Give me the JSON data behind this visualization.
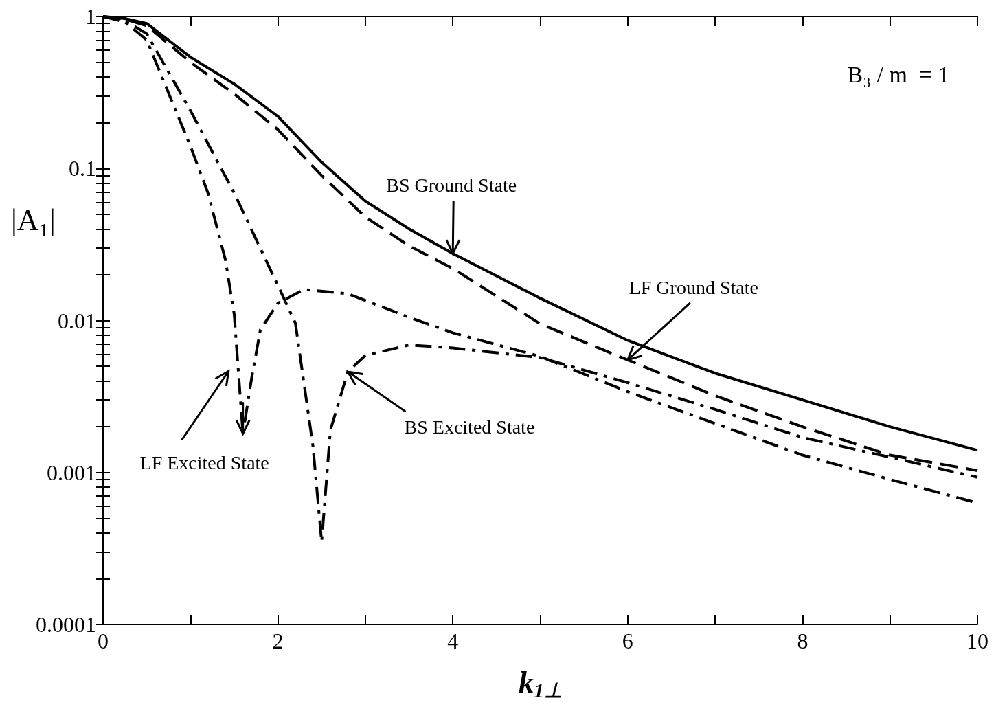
{
  "chart_data": {
    "type": "line",
    "xlabel": "k$_{1⊥}$",
    "ylabel": "|A₁|",
    "log": "y",
    "xlim": [
      0,
      10
    ],
    "xticks": [
      0,
      {
        "value": 1,
        "label": null
      },
      2,
      {
        "value": 3,
        "label": null
      },
      4,
      {
        "value": 5,
        "label": null
      },
      6,
      {
        "value": 7,
        "label": null
      },
      8,
      {
        "value": 9,
        "label": null
      },
      10
    ],
    "ylim": [
      0.0001,
      1
    ],
    "yticks": [
      0.0001,
      {
        "value": 0.0002,
        "label": null
      },
      {
        "value": 0.0003,
        "label": null
      },
      {
        "value": 0.0004,
        "label": null
      },
      {
        "value": 0.0005,
        "label": null
      },
      {
        "value": 0.0006,
        "label": null
      },
      {
        "value": 0.0007,
        "label": null
      },
      {
        "value": 0.0008,
        "label": null
      },
      {
        "value": 0.0009,
        "label": null
      },
      0.001,
      {
        "value": 0.002,
        "label": null
      },
      {
        "value": 0.003,
        "label": null
      },
      {
        "value": 0.004,
        "label": null
      },
      {
        "value": 0.005,
        "label": null
      },
      {
        "value": 0.006,
        "label": null
      },
      {
        "value": 0.007,
        "label": null
      },
      {
        "value": 0.008,
        "label": null
      },
      {
        "value": 0.009,
        "label": null
      },
      0.01,
      {
        "value": 0.02,
        "label": null
      },
      {
        "value": 0.03,
        "label": null
      },
      {
        "value": 0.04,
        "label": null
      },
      {
        "value": 0.05,
        "label": null
      },
      {
        "value": 0.06,
        "label": null
      },
      {
        "value": 0.07,
        "label": null
      },
      {
        "value": 0.08,
        "label": null
      },
      {
        "value": 0.09,
        "label": null
      },
      0.1,
      {
        "value": 0.2,
        "label": null
      },
      {
        "value": 0.3,
        "label": null
      },
      {
        "value": 0.4,
        "label": null
      },
      {
        "value": 0.5,
        "label": null
      },
      {
        "value": 0.6,
        "label": null
      },
      {
        "value": 0.7,
        "label": null
      },
      {
        "value": 0.8,
        "label": null
      },
      {
        "value": 0.9,
        "label": null
      },
      1
    ],
    "grid": false,
    "marker": "none",
    "series": [
      {
        "color": "#000000",
        "line_style": "solid",
        "x": [
          0,
          0.25,
          0.5,
          1,
          1.5,
          2,
          2.5,
          3,
          3.5,
          4,
          5,
          6,
          7,
          8,
          9,
          10
        ],
        "values": [
          1,
          0.97,
          0.9,
          0.54,
          0.36,
          0.22,
          0.11,
          0.061,
          0.04,
          0.0276,
          0.014,
          0.0074,
          0.0045,
          0.003,
          0.002,
          0.0014
        ]
      },
      {
        "color": "#000000",
        "line_style": "dashed",
        "x": [
          0,
          0.25,
          0.5,
          1,
          1.5,
          2,
          2.5,
          3,
          3.5,
          4,
          5,
          6,
          7,
          8,
          9,
          10
        ],
        "values": [
          1,
          0.96,
          0.87,
          0.5,
          0.31,
          0.18,
          0.09,
          0.048,
          0.031,
          0.022,
          0.0095,
          0.0055,
          0.0032,
          0.002,
          0.0013,
          0.00103
        ]
      },
      {
        "color": "#000000",
        "line_style": "dashdot",
        "x": [
          0,
          0.25,
          0.5,
          1,
          1.5,
          2,
          2.2,
          2.4,
          2.5,
          2.6,
          2.8,
          3,
          3.5,
          4,
          5,
          6,
          7,
          8,
          9,
          10
        ],
        "values": [
          1,
          0.94,
          0.77,
          0.24,
          0.069,
          0.017,
          0.0096,
          0.0015,
          0.00035,
          0.0019,
          0.0046,
          0.0059,
          0.0069,
          0.0066,
          0.0057,
          0.0039,
          0.0026,
          0.0017,
          0.00126,
          0.00093
        ]
      },
      {
        "color": "#000000",
        "line_style": "dashdot",
        "x": [
          0,
          0.25,
          0.5,
          1,
          1.2,
          1.4,
          1.5,
          1.6,
          1.7,
          1.8,
          2,
          2.3,
          2.8,
          3.5,
          4,
          5,
          6,
          7,
          8,
          9,
          10
        ],
        "values": [
          1,
          0.92,
          0.7,
          0.14,
          0.069,
          0.025,
          0.011,
          0.0018,
          0.0042,
          0.0087,
          0.013,
          0.016,
          0.015,
          0.0105,
          0.0083,
          0.0058,
          0.0034,
          0.0021,
          0.0013,
          0.0009,
          0.00063
        ]
      }
    ],
    "annotations": [
      "B₃ / m  = 1",
      {
        "text": "BS Ground State",
        "x": 4,
        "y": 0.0276
      },
      {
        "text": "LF Ground State",
        "x": 6,
        "y": 0.0055
      },
      {
        "text": "BS Excited State",
        "x": 2.8,
        "y": 0.0046
      },
      {
        "text": "LF Excited State",
        "x": 1.6,
        "y": 0.0018
      }
    ]
  }
}
